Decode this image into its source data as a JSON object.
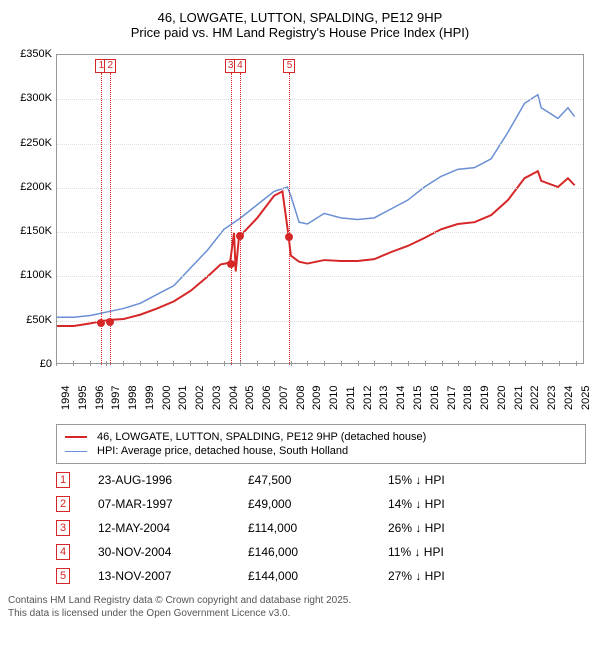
{
  "title": {
    "line1": "46, LOWGATE, LUTTON, SPALDING, PE12 9HP",
    "line2": "Price paid vs. HM Land Registry's House Price Index (HPI)"
  },
  "chart": {
    "type": "line",
    "background_color": "#ffffff",
    "grid_color": "#dddddd",
    "border_color": "#999999",
    "xlim": [
      1994,
      2025.5
    ],
    "ylim": [
      0,
      350000
    ],
    "ytick_step": 50000,
    "yticks": [
      0,
      50000,
      100000,
      150000,
      200000,
      250000,
      300000,
      350000
    ],
    "ytick_labels": [
      "£0",
      "£50K",
      "£100K",
      "£150K",
      "£200K",
      "£250K",
      "£300K",
      "£350K"
    ],
    "xticks": [
      1994,
      1995,
      1996,
      1997,
      1998,
      1999,
      2000,
      2001,
      2002,
      2003,
      2004,
      2005,
      2006,
      2007,
      2008,
      2009,
      2010,
      2011,
      2012,
      2013,
      2014,
      2015,
      2016,
      2017,
      2018,
      2019,
      2020,
      2021,
      2022,
      2023,
      2024,
      2025
    ],
    "label_fontsize": 11,
    "series": [
      {
        "name": "price_paid",
        "color": "#d62728",
        "line_width": 2,
        "legend": "46, LOWGATE, LUTTON, SPALDING, PE12 9HP (detached house)",
        "points": [
          [
            1994,
            42000
          ],
          [
            1995,
            42000
          ],
          [
            1996,
            45000
          ],
          [
            1996.65,
            47500
          ],
          [
            1997.18,
            49000
          ],
          [
            1998,
            50000
          ],
          [
            1999,
            55000
          ],
          [
            2000,
            62000
          ],
          [
            2001,
            70000
          ],
          [
            2002,
            82000
          ],
          [
            2003,
            98000
          ],
          [
            2003.8,
            112000
          ],
          [
            2004.36,
            114000
          ],
          [
            2004.6,
            148000
          ],
          [
            2004.7,
            104000
          ],
          [
            2004.91,
            146000
          ],
          [
            2005,
            145000
          ],
          [
            2006,
            165000
          ],
          [
            2007,
            190000
          ],
          [
            2007.5,
            195000
          ],
          [
            2007.87,
            144000
          ],
          [
            2008,
            122000
          ],
          [
            2008.5,
            115000
          ],
          [
            2009,
            113000
          ],
          [
            2010,
            117000
          ],
          [
            2011,
            116000
          ],
          [
            2012,
            116000
          ],
          [
            2013,
            118000
          ],
          [
            2014,
            126000
          ],
          [
            2015,
            133000
          ],
          [
            2016,
            142000
          ],
          [
            2017,
            152000
          ],
          [
            2018,
            158000
          ],
          [
            2019,
            160000
          ],
          [
            2020,
            168000
          ],
          [
            2021,
            185000
          ],
          [
            2022,
            210000
          ],
          [
            2022.8,
            218000
          ],
          [
            2023,
            207000
          ],
          [
            2024,
            200000
          ],
          [
            2024.6,
            210000
          ],
          [
            2025,
            202000
          ]
        ]
      },
      {
        "name": "hpi",
        "color": "#6a8fd4",
        "line_width": 1.5,
        "legend": "HPI: Average price, detached house, South Holland",
        "points": [
          [
            1994,
            52000
          ],
          [
            1995,
            52000
          ],
          [
            1996,
            54000
          ],
          [
            1997,
            58000
          ],
          [
            1998,
            62000
          ],
          [
            1999,
            68000
          ],
          [
            2000,
            78000
          ],
          [
            2001,
            88000
          ],
          [
            2002,
            108000
          ],
          [
            2003,
            128000
          ],
          [
            2004,
            152000
          ],
          [
            2005,
            165000
          ],
          [
            2006,
            180000
          ],
          [
            2007,
            195000
          ],
          [
            2007.8,
            200000
          ],
          [
            2008,
            190000
          ],
          [
            2008.5,
            160000
          ],
          [
            2009,
            158000
          ],
          [
            2010,
            170000
          ],
          [
            2011,
            165000
          ],
          [
            2012,
            163000
          ],
          [
            2013,
            165000
          ],
          [
            2014,
            175000
          ],
          [
            2015,
            185000
          ],
          [
            2016,
            200000
          ],
          [
            2017,
            212000
          ],
          [
            2018,
            220000
          ],
          [
            2019,
            222000
          ],
          [
            2020,
            232000
          ],
          [
            2021,
            262000
          ],
          [
            2022,
            295000
          ],
          [
            2022.8,
            305000
          ],
          [
            2023,
            290000
          ],
          [
            2024,
            278000
          ],
          [
            2024.6,
            290000
          ],
          [
            2025,
            280000
          ]
        ]
      }
    ],
    "markers": [
      {
        "n": "1",
        "x": 1996.65,
        "y": 47500
      },
      {
        "n": "2",
        "x": 1997.18,
        "y": 49000
      },
      {
        "n": "3",
        "x": 2004.36,
        "y": 114000
      },
      {
        "n": "4",
        "x": 2004.91,
        "y": 146000
      },
      {
        "n": "5",
        "x": 2007.87,
        "y": 144000
      }
    ]
  },
  "legend": {
    "rows": [
      {
        "color": "#d62728",
        "width": 2,
        "label": "46, LOWGATE, LUTTON, SPALDING, PE12 9HP (detached house)"
      },
      {
        "color": "#6a8fd4",
        "width": 1.5,
        "label": "HPI: Average price, detached house, South Holland"
      }
    ]
  },
  "sales": [
    {
      "n": "1",
      "date": "23-AUG-1996",
      "price": "£47,500",
      "diff": "15% ↓ HPI"
    },
    {
      "n": "2",
      "date": "07-MAR-1997",
      "price": "£49,000",
      "diff": "14% ↓ HPI"
    },
    {
      "n": "3",
      "date": "12-MAY-2004",
      "price": "£114,000",
      "diff": "26% ↓ HPI"
    },
    {
      "n": "4",
      "date": "30-NOV-2004",
      "price": "£146,000",
      "diff": "11% ↓ HPI"
    },
    {
      "n": "5",
      "date": "13-NOV-2007",
      "price": "£144,000",
      "diff": "27% ↓ HPI"
    }
  ],
  "footer": {
    "line1": "Contains HM Land Registry data © Crown copyright and database right 2025.",
    "line2": "This data is licensed under the Open Government Licence v3.0."
  }
}
